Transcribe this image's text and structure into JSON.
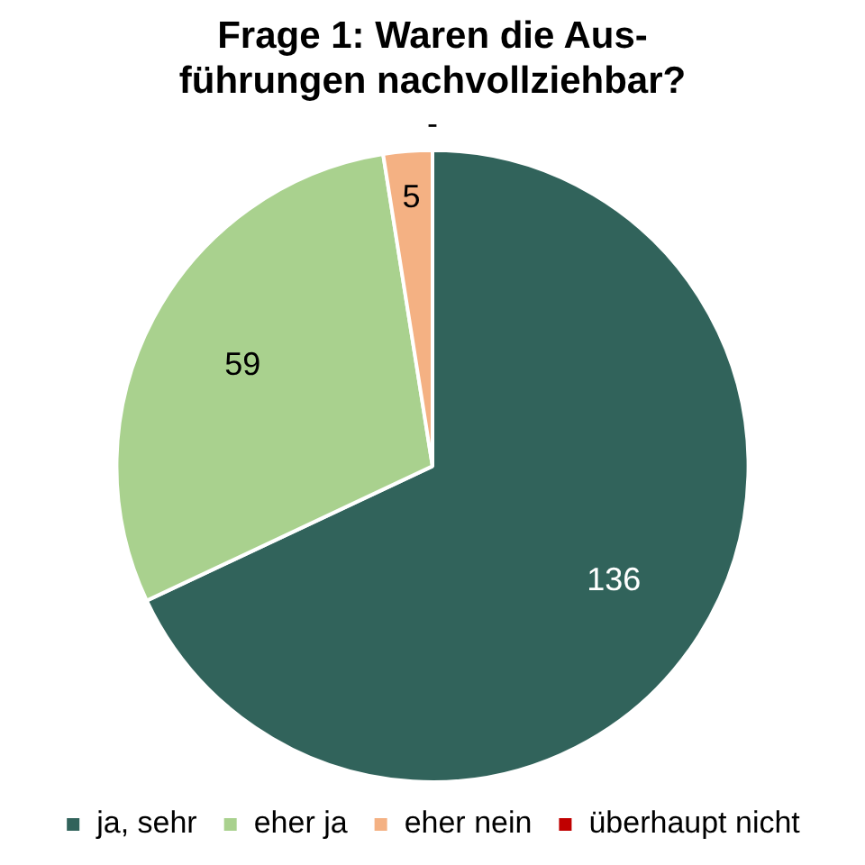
{
  "chart_data": {
    "type": "pie",
    "title": "Frage 1: Waren die Aus-\nführungen nachvollziehbar?",
    "categories": [
      "ja, sehr",
      "eher ja",
      "eher nein",
      "überhaupt nicht"
    ],
    "values": [
      136,
      59,
      5,
      0
    ],
    "colors": [
      "#31635b",
      "#a9d18e",
      "#f4b183",
      "#c00000"
    ],
    "value_labels": [
      "136",
      "59",
      "5",
      "-"
    ],
    "legend": "bottom"
  }
}
